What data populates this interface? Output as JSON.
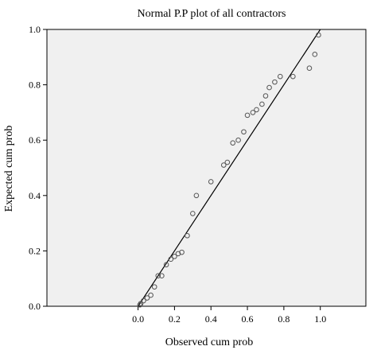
{
  "chart_data": {
    "type": "scatter",
    "title": "Normal P.P plot of all contractors",
    "xlabel": "Observed cum prob",
    "ylabel": "Expected cum prob",
    "xlim": [
      -0.5,
      1.25
    ],
    "ylim": [
      0.0,
      1.0
    ],
    "x_ticks": [
      0.0,
      0.2,
      0.4,
      0.6,
      0.8,
      1.0
    ],
    "x_tick_labels": [
      "0.0",
      "0.2",
      "0.4",
      "0.6",
      "0.8",
      "1.0"
    ],
    "y_ticks": [
      0.0,
      0.2,
      0.4,
      0.6,
      0.8,
      1.0
    ],
    "y_tick_labels": [
      "0.0",
      "0.2",
      "0.4",
      "0.6",
      "0.8",
      "1.0"
    ],
    "grid": false,
    "legend": "none",
    "reference_line": {
      "x": [
        0.0,
        1.0
      ],
      "y": [
        0.0,
        1.0
      ]
    },
    "colors": {
      "plot_background": "#f0f0f0",
      "points": "#555555",
      "line": "#000000"
    },
    "points": [
      {
        "x": 0.01,
        "y": 0.005
      },
      {
        "x": 0.015,
        "y": 0.01
      },
      {
        "x": 0.03,
        "y": 0.02
      },
      {
        "x": 0.05,
        "y": 0.03
      },
      {
        "x": 0.07,
        "y": 0.04
      },
      {
        "x": 0.09,
        "y": 0.07
      },
      {
        "x": 0.11,
        "y": 0.11
      },
      {
        "x": 0.13,
        "y": 0.11
      },
      {
        "x": 0.155,
        "y": 0.15
      },
      {
        "x": 0.18,
        "y": 0.17
      },
      {
        "x": 0.2,
        "y": 0.18
      },
      {
        "x": 0.22,
        "y": 0.19
      },
      {
        "x": 0.24,
        "y": 0.195
      },
      {
        "x": 0.27,
        "y": 0.255
      },
      {
        "x": 0.3,
        "y": 0.335
      },
      {
        "x": 0.32,
        "y": 0.4
      },
      {
        "x": 0.4,
        "y": 0.45
      },
      {
        "x": 0.47,
        "y": 0.51
      },
      {
        "x": 0.49,
        "y": 0.52
      },
      {
        "x": 0.52,
        "y": 0.59
      },
      {
        "x": 0.55,
        "y": 0.6
      },
      {
        "x": 0.58,
        "y": 0.63
      },
      {
        "x": 0.6,
        "y": 0.69
      },
      {
        "x": 0.63,
        "y": 0.7
      },
      {
        "x": 0.65,
        "y": 0.71
      },
      {
        "x": 0.68,
        "y": 0.73
      },
      {
        "x": 0.7,
        "y": 0.76
      },
      {
        "x": 0.72,
        "y": 0.79
      },
      {
        "x": 0.75,
        "y": 0.81
      },
      {
        "x": 0.78,
        "y": 0.83
      },
      {
        "x": 0.85,
        "y": 0.83
      },
      {
        "x": 0.94,
        "y": 0.86
      },
      {
        "x": 0.97,
        "y": 0.91
      },
      {
        "x": 0.99,
        "y": 0.98
      }
    ]
  }
}
